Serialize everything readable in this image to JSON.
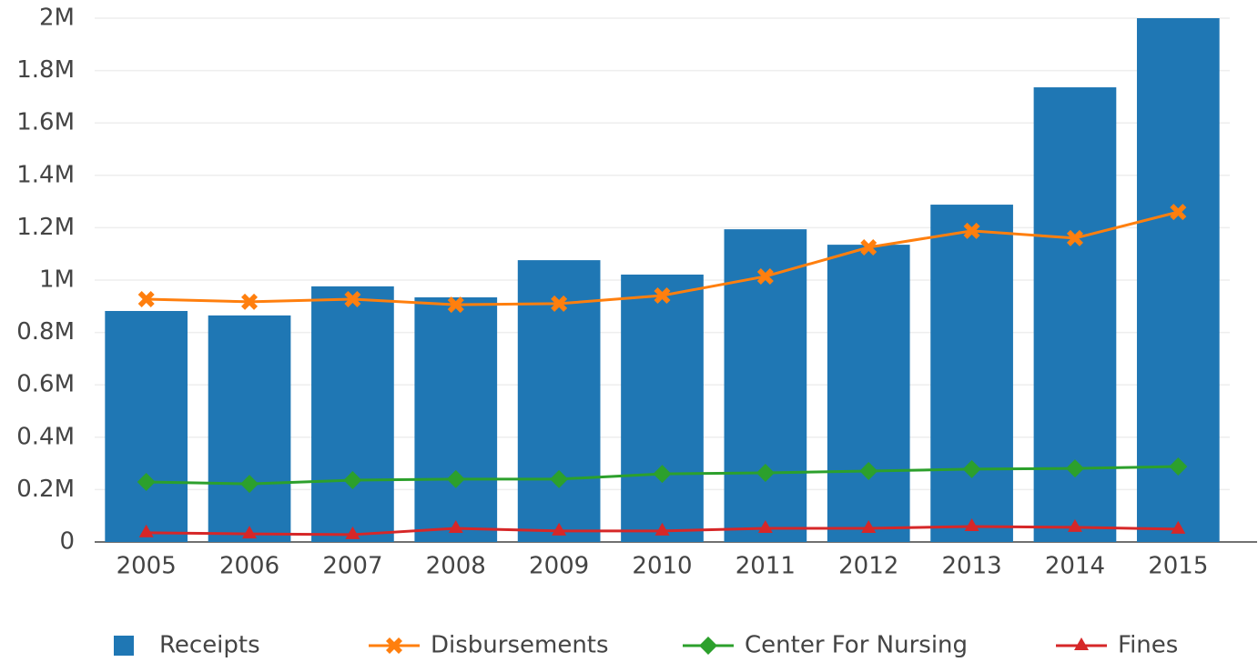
{
  "chart_data": {
    "type": "bar-line",
    "categories": [
      "2005",
      "2006",
      "2007",
      "2008",
      "2009",
      "2010",
      "2011",
      "2012",
      "2013",
      "2014",
      "2015"
    ],
    "series": [
      {
        "name": "Receipts",
        "type": "bar",
        "color": "#1f77b4",
        "values": [
          882000,
          865000,
          976000,
          934000,
          1076000,
          1021000,
          1194000,
          1135000,
          1288000,
          1736000,
          2000000
        ]
      },
      {
        "name": "Disbursements",
        "type": "line",
        "marker": "x",
        "color": "#ff7f0e",
        "values": [
          927000,
          917000,
          927000,
          906000,
          910000,
          941000,
          1014000,
          1125000,
          1188000,
          1160000,
          1260000
        ]
      },
      {
        "name": "Center For Nursing",
        "type": "line",
        "marker": "diamond",
        "color": "#2ca02c",
        "values": [
          229000,
          222000,
          236000,
          240000,
          240000,
          260000,
          264000,
          271000,
          278000,
          281000,
          288000
        ]
      },
      {
        "name": "Fines",
        "type": "line",
        "marker": "triangle",
        "color": "#d62728",
        "values": [
          35000,
          31000,
          28000,
          52000,
          42000,
          42000,
          52000,
          52000,
          59000,
          56000,
          49000
        ]
      }
    ],
    "ylim": [
      0,
      2000000
    ],
    "yticks": [
      0,
      {
        "value": 200000,
        "label": "0.2M"
      },
      {
        "value": 400000,
        "label": "0.4M"
      },
      {
        "value": 600000,
        "label": "0.6M"
      },
      {
        "value": 800000,
        "label": "0.8M"
      },
      {
        "value": 1000000,
        "label": "1M"
      },
      {
        "value": 1200000,
        "label": "1.2M"
      },
      {
        "value": 1400000,
        "label": "1.4M"
      },
      {
        "value": 1600000,
        "label": "1.6M"
      },
      {
        "value": 1800000,
        "label": "1.8M"
      },
      {
        "value": 2000000,
        "label": "2M"
      }
    ],
    "grid": true,
    "legend": "bottom"
  }
}
